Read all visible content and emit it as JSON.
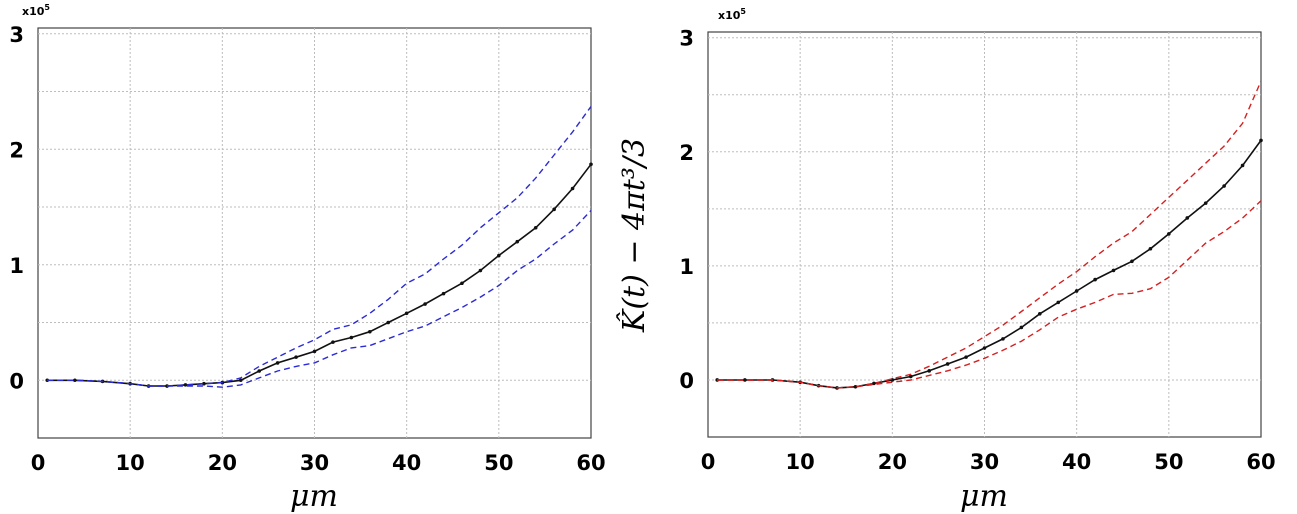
{
  "chart_data": [
    {
      "type": "line",
      "panel": "left",
      "xlabel": "μm",
      "ylabel": "",
      "y_multiplier": "x10",
      "y_multiplier_exp": "5",
      "xlim": [
        0,
        60
      ],
      "ylim": [
        -0.5,
        3.05
      ],
      "xticks": [
        0,
        10,
        20,
        30,
        40,
        50,
        60
      ],
      "yticks": [
        0,
        1,
        2,
        3
      ],
      "grid": true,
      "colors": {
        "mean": "#111111",
        "envelope": "#2b2bd6"
      },
      "series": [
        {
          "role": "mean",
          "style": "solid-dotted",
          "x": [
            1,
            4,
            7,
            10,
            12,
            14,
            16,
            18,
            20,
            22,
            24,
            26,
            28,
            30,
            32,
            34,
            36,
            38,
            40,
            42,
            44,
            46,
            48,
            50,
            52,
            54,
            56,
            58,
            60
          ],
          "y": [
            0,
            0,
            -0.01,
            -0.03,
            -0.05,
            -0.05,
            -0.04,
            -0.03,
            -0.02,
            0.0,
            0.08,
            0.15,
            0.2,
            0.25,
            0.33,
            0.37,
            0.42,
            0.5,
            0.58,
            0.66,
            0.75,
            0.84,
            0.95,
            1.08,
            1.2,
            1.32,
            1.48,
            1.66,
            1.87
          ]
        },
        {
          "role": "upper",
          "style": "dashed",
          "x": [
            1,
            4,
            7,
            10,
            12,
            14,
            16,
            18,
            20,
            22,
            24,
            26,
            28,
            30,
            32,
            34,
            36,
            38,
            40,
            42,
            44,
            46,
            48,
            50,
            52,
            54,
            56,
            58,
            60
          ],
          "y": [
            0,
            0,
            -0.01,
            -0.03,
            -0.05,
            -0.05,
            -0.04,
            -0.03,
            -0.02,
            0.02,
            0.12,
            0.2,
            0.28,
            0.35,
            0.44,
            0.48,
            0.58,
            0.7,
            0.84,
            0.92,
            1.05,
            1.17,
            1.32,
            1.45,
            1.58,
            1.75,
            1.95,
            2.15,
            2.37
          ]
        },
        {
          "role": "lower",
          "style": "dashed",
          "x": [
            1,
            4,
            7,
            10,
            12,
            14,
            16,
            18,
            20,
            22,
            24,
            26,
            28,
            30,
            32,
            34,
            36,
            38,
            40,
            42,
            44,
            46,
            48,
            50,
            52,
            54,
            56,
            58,
            60
          ],
          "y": [
            0,
            0,
            -0.01,
            -0.03,
            -0.05,
            -0.05,
            -0.05,
            -0.05,
            -0.06,
            -0.04,
            0.02,
            0.08,
            0.12,
            0.15,
            0.22,
            0.28,
            0.3,
            0.36,
            0.42,
            0.47,
            0.55,
            0.63,
            0.72,
            0.82,
            0.95,
            1.05,
            1.18,
            1.3,
            1.47
          ]
        }
      ]
    },
    {
      "type": "line",
      "panel": "right",
      "xlabel": "μm",
      "ylabel": "K̂(t) − 4πt³/3",
      "y_multiplier": "x10",
      "y_multiplier_exp": "5",
      "xlim": [
        0,
        60
      ],
      "ylim": [
        -0.5,
        3.05
      ],
      "xticks": [
        0,
        10,
        20,
        30,
        40,
        50,
        60
      ],
      "yticks": [
        0,
        1,
        2,
        3
      ],
      "grid": true,
      "colors": {
        "mean": "#111111",
        "envelope": "#d42020"
      },
      "series": [
        {
          "role": "mean",
          "style": "solid-dotted",
          "x": [
            1,
            4,
            7,
            10,
            12,
            14,
            16,
            18,
            20,
            22,
            24,
            26,
            28,
            30,
            32,
            34,
            36,
            38,
            40,
            42,
            44,
            46,
            48,
            50,
            52,
            54,
            56,
            58,
            60
          ],
          "y": [
            0,
            0,
            0,
            -0.02,
            -0.05,
            -0.07,
            -0.06,
            -0.03,
            0.0,
            0.03,
            0.08,
            0.14,
            0.2,
            0.28,
            0.36,
            0.46,
            0.58,
            0.68,
            0.78,
            0.88,
            0.96,
            1.04,
            1.15,
            1.28,
            1.42,
            1.55,
            1.7,
            1.88,
            2.1
          ]
        },
        {
          "role": "upper",
          "style": "dashed",
          "x": [
            1,
            4,
            7,
            10,
            12,
            14,
            16,
            18,
            20,
            22,
            24,
            26,
            28,
            30,
            32,
            34,
            36,
            38,
            40,
            42,
            44,
            46,
            48,
            50,
            52,
            54,
            56,
            58,
            60
          ],
          "y": [
            0,
            0,
            0,
            -0.02,
            -0.05,
            -0.07,
            -0.06,
            -0.03,
            0.01,
            0.05,
            0.12,
            0.2,
            0.28,
            0.38,
            0.48,
            0.6,
            0.72,
            0.84,
            0.95,
            1.08,
            1.2,
            1.3,
            1.45,
            1.6,
            1.75,
            1.9,
            2.05,
            2.25,
            2.62
          ]
        },
        {
          "role": "lower",
          "style": "dashed",
          "x": [
            1,
            4,
            7,
            10,
            12,
            14,
            16,
            18,
            20,
            22,
            24,
            26,
            28,
            30,
            32,
            34,
            36,
            38,
            40,
            42,
            44,
            46,
            48,
            50,
            52,
            54,
            56,
            58,
            60
          ],
          "y": [
            0,
            0,
            0,
            -0.02,
            -0.05,
            -0.07,
            -0.06,
            -0.04,
            -0.02,
            0.0,
            0.04,
            0.08,
            0.13,
            0.19,
            0.26,
            0.34,
            0.44,
            0.55,
            0.62,
            0.68,
            0.75,
            0.76,
            0.8,
            0.9,
            1.05,
            1.2,
            1.3,
            1.42,
            1.57
          ]
        }
      ]
    }
  ]
}
